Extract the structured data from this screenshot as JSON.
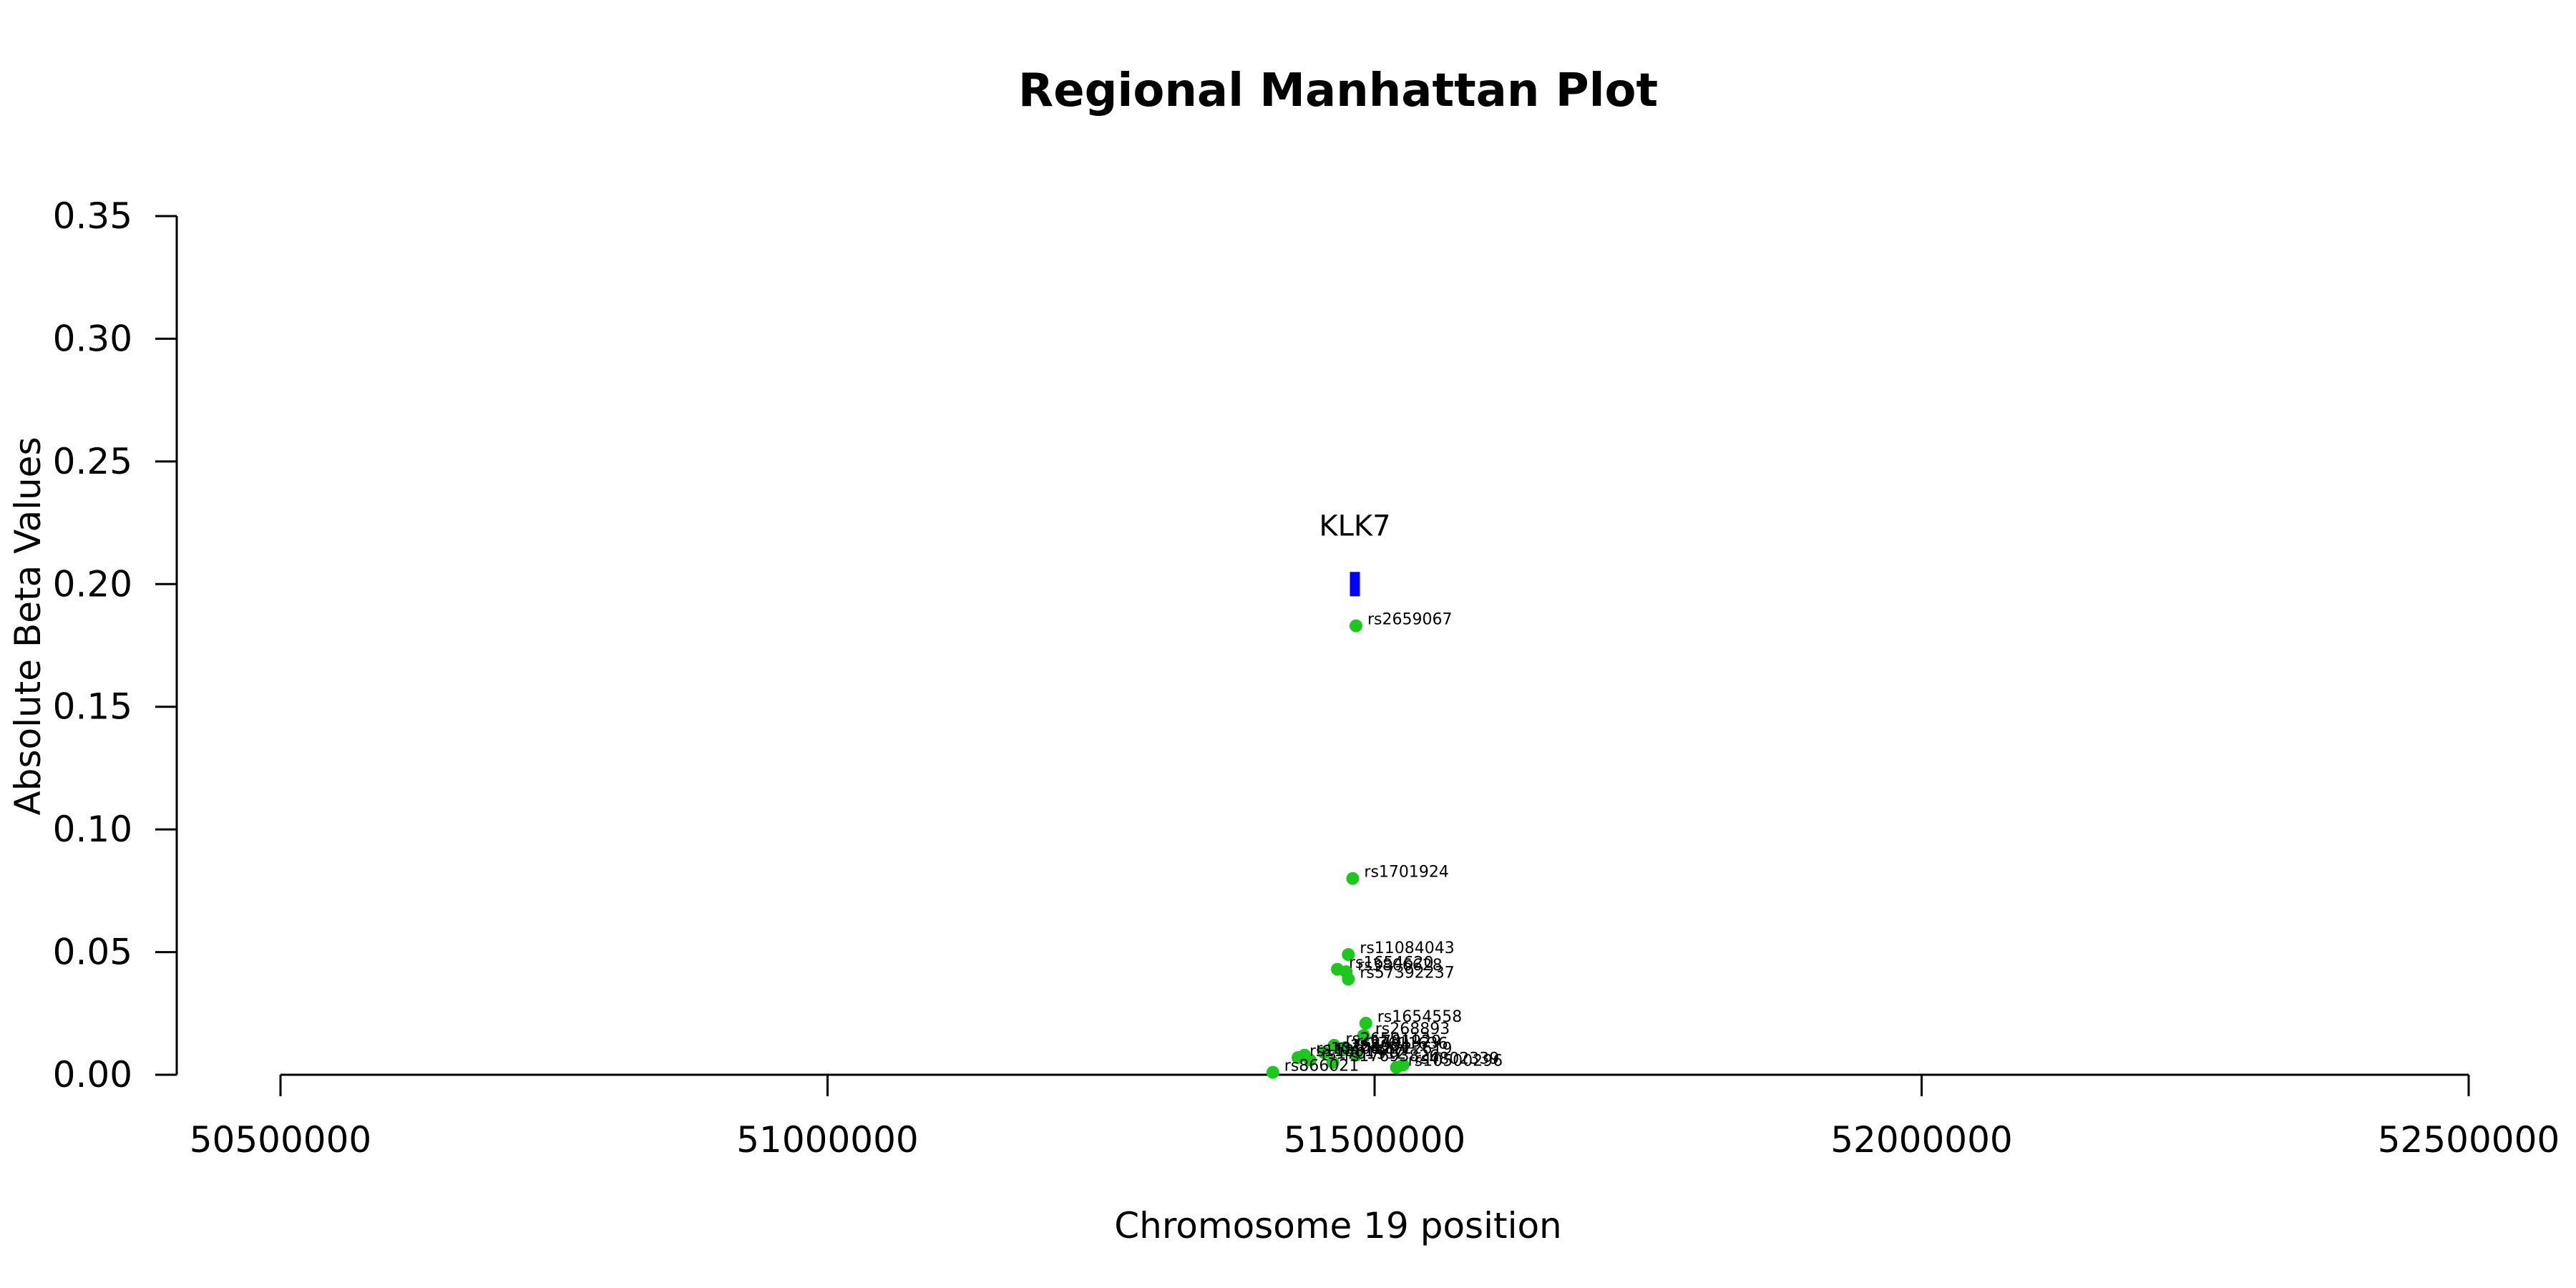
{
  "chart_data": {
    "type": "scatter",
    "title": "Regional Manhattan Plot",
    "xlabel": "Chromosome 19 position",
    "ylabel": "Absolute Beta Values",
    "xlim": [
      50500000,
      52500000
    ],
    "ylim": [
      0,
      0.35
    ],
    "x_ticks": [
      "50500000",
      "51000000",
      "51500000",
      "52000000",
      "52500000"
    ],
    "y_ticks": [
      "0.00",
      "0.05",
      "0.10",
      "0.15",
      "0.20",
      "0.25",
      "0.30",
      "0.35"
    ],
    "point_color": "#1ec71e",
    "gene_color": "#0000ff",
    "genes": [
      {
        "name": "KLK7",
        "start": 51478000,
        "end": 51486000,
        "y": 0.2
      }
    ],
    "points": [
      {
        "label": "rs2659067",
        "x": 51483000,
        "y": 0.183
      },
      {
        "label": "rs1701924",
        "x": 51480000,
        "y": 0.08
      },
      {
        "label": "rs11084043",
        "x": 51476000,
        "y": 0.049
      },
      {
        "label": "rs1654620",
        "x": 51466000,
        "y": 0.043
      },
      {
        "label": "rs3806628",
        "x": 51474000,
        "y": 0.042
      },
      {
        "label": "rs57392237",
        "x": 51476000,
        "y": 0.039
      },
      {
        "label": "rs1654558",
        "x": 51492000,
        "y": 0.021
      },
      {
        "label": "rs268893",
        "x": 51490000,
        "y": 0.016
      },
      {
        "label": "rs2659113",
        "x": 51463000,
        "y": 0.012
      },
      {
        "label": "rs1701929",
        "x": 51473000,
        "y": 0.011
      },
      {
        "label": "rs17611636",
        "x": 51470000,
        "y": 0.01
      },
      {
        "label": "rs268904",
        "x": 51454000,
        "y": 0.009
      },
      {
        "label": "rs1722619",
        "x": 51483000,
        "y": 0.008
      },
      {
        "label": "rs10408221",
        "x": 51436000,
        "y": 0.008
      },
      {
        "label": "rs11881447",
        "x": 51430000,
        "y": 0.007
      },
      {
        "label": "rs1701912",
        "x": 51441000,
        "y": 0.006
      },
      {
        "label": "rs17693826",
        "x": 51462000,
        "y": 0.005
      },
      {
        "label": "rs4802339",
        "x": 51526000,
        "y": 0.004
      },
      {
        "label": "rs10500296",
        "x": 51520000,
        "y": 0.003
      },
      {
        "label": "rs866021",
        "x": 51407000,
        "y": 0.001
      }
    ]
  }
}
